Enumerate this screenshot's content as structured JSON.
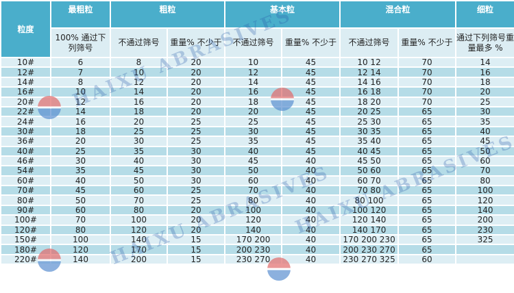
{
  "headers": {
    "grit": "粒度",
    "groups": [
      "最粗粒",
      "粗粒",
      "基本粒",
      "混合粒",
      "细粒"
    ],
    "sub": [
      "100% 通过下列筛号",
      "不通过筛号",
      "重量% 不少于",
      "不通过筛号",
      "重量% 不少于",
      "不通过筛号",
      "重量% 不少于",
      "通过下列筛号重量最多 %"
    ]
  },
  "rows": [
    [
      "10#",
      "6",
      "8",
      "20",
      "10",
      "45",
      "10 12",
      "70",
      "14"
    ],
    [
      "12#",
      "7",
      "10",
      "20",
      "12",
      "45",
      "12 14",
      "70",
      "16"
    ],
    [
      "14#",
      "8",
      "12",
      "20",
      "14",
      "45",
      "14 16",
      "70",
      "18"
    ],
    [
      "16#",
      "10",
      "14",
      "20",
      "16",
      "45",
      "16 18",
      "70",
      "20"
    ],
    [
      "20#",
      "12",
      "16",
      "20",
      "18",
      "45",
      "18 20",
      "70",
      "25"
    ],
    [
      "22#",
      "14",
      "18",
      "20",
      "20",
      "45",
      "20 25",
      "65",
      "30"
    ],
    [
      "24#",
      "16",
      "20",
      "25",
      "25",
      "45",
      "25 30",
      "65",
      "35"
    ],
    [
      "30#",
      "18",
      "25",
      "25",
      "30",
      "45",
      "30 35",
      "65",
      "40"
    ],
    [
      "36#",
      "20",
      "30",
      "25",
      "35",
      "45",
      "35 40",
      "65",
      "45"
    ],
    [
      "40#",
      "25",
      "35",
      "30",
      "40",
      "45",
      "40 45",
      "65",
      "50"
    ],
    [
      "46#",
      "30",
      "40",
      "30",
      "45",
      "40",
      "45 50",
      "65",
      "60"
    ],
    [
      "54#",
      "35",
      "45",
      "30",
      "50",
      "40",
      "50 60",
      "65",
      "70"
    ],
    [
      "60#",
      "40",
      "50",
      "30",
      "60",
      "40",
      "60 70",
      "65",
      "80"
    ],
    [
      "70#",
      "45",
      "60",
      "25",
      "70",
      "40",
      "70 80",
      "65",
      "100"
    ],
    [
      "80#",
      "50",
      "70",
      "25",
      "80",
      "40",
      "80 100",
      "65",
      "120"
    ],
    [
      "90#",
      "60",
      "80",
      "20",
      "100",
      "40",
      "100 120",
      "65",
      "140"
    ],
    [
      "100#",
      "70",
      "100",
      "20",
      "120",
      "40",
      "120 140",
      "65",
      "200"
    ],
    [
      "120#",
      "80",
      "120",
      "20",
      "140",
      "40",
      "140 170",
      "65",
      "230"
    ],
    [
      "150#",
      "100",
      "140",
      "15",
      "170 200",
      "40",
      "170 200 230",
      "65",
      "325"
    ],
    [
      "180#",
      "120",
      "170",
      "15",
      "200 230",
      "40",
      "200 230 270",
      "65",
      ""
    ],
    [
      "220#",
      "140",
      "200",
      "15",
      "230 270",
      "40",
      "230 270 325",
      "60",
      ""
    ]
  ],
  "watermark": "HAIXU ABRASIVES",
  "colors": {
    "header": "#4aaecb",
    "subheader": "#dcedf3",
    "row_light": "#ddeef4",
    "row_dark": "#b5dce7"
  }
}
